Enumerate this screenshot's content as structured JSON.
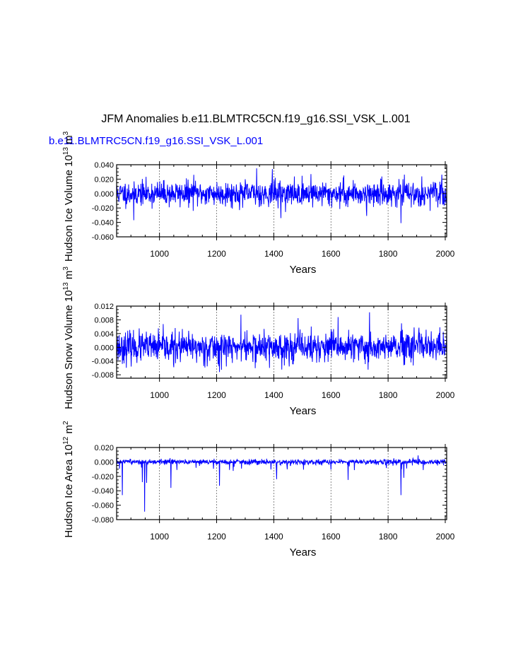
{
  "header": {
    "title": "JFM Anomalies b.e11.BLMTRC5CN.f19_g16.SSI_VSK_L.001",
    "subtitle": "b.e11.BLMTRC5CN.f19_g16.SSI_VSK_L.001",
    "subtitle_color": "#0000ff"
  },
  "line_color": "#0000ff",
  "chart_data": [
    {
      "type": "line",
      "xlabel": "Years",
      "ylabel_main": "Hudson Ice Volume 10",
      "ylabel_exp": "13",
      "ylabel_unit": " m",
      "ylabel_unit_exp": "3",
      "xlim": [
        850,
        2005
      ],
      "ylim": [
        -0.06,
        0.04
      ],
      "xticks": [
        1000,
        1200,
        1400,
        1600,
        1800,
        2000
      ],
      "xtick_labels": [
        "1000",
        "1200",
        "1400",
        "1600",
        "1800",
        "2000"
      ],
      "yticks": [
        -0.06,
        -0.04,
        -0.02,
        0.0,
        0.02,
        0.04
      ],
      "ytick_labels": [
        "-0.060",
        "-0.040",
        "-0.020",
        "0.000",
        "0.020",
        "0.040"
      ],
      "x_gridlines": [
        1000,
        1200,
        1400,
        1600,
        1800
      ],
      "series": [
        {
          "x_start": 850,
          "x_end": 2005,
          "noise_std": 0.0085,
          "seed": 11,
          "spikes": [
            [
              1340,
              0.035
            ],
            [
              1395,
              0.034
            ],
            [
              1425,
              -0.034
            ],
            [
              1530,
              0.027
            ],
            [
              1725,
              -0.031
            ],
            [
              1845,
              -0.041
            ],
            [
              910,
              -0.037
            ],
            [
              1120,
              0.026
            ],
            [
              1645,
              0.025
            ]
          ]
        }
      ]
    },
    {
      "type": "line",
      "xlabel": "Years",
      "ylabel_main": "Hudson Snow Volume 10",
      "ylabel_exp": "13",
      "ylabel_unit": " m",
      "ylabel_unit_exp": "3",
      "xlim": [
        850,
        2005
      ],
      "ylim": [
        -0.009,
        0.012
      ],
      "xticks": [
        1000,
        1200,
        1400,
        1600,
        1800,
        2000
      ],
      "xtick_labels": [
        "1000",
        "1200",
        "1400",
        "1600",
        "1800",
        "2000"
      ],
      "yticks": [
        -0.008,
        -0.004,
        0.0,
        0.004,
        0.008,
        0.012
      ],
      "ytick_labels": [
        "-0.008",
        "-0.004",
        "0.000",
        "0.004",
        "0.008",
        "0.012"
      ],
      "x_gridlines": [
        1000,
        1200,
        1400,
        1600,
        1800
      ],
      "series": [
        {
          "x_start": 850,
          "x_end": 2005,
          "noise_std": 0.0022,
          "seed": 23,
          "spikes": [
            [
              1735,
              0.0102
            ],
            [
              1285,
              0.0095
            ],
            [
              1485,
              0.0085
            ],
            [
              1625,
              0.0088
            ],
            [
              1210,
              -0.0072
            ],
            [
              1730,
              -0.0065
            ],
            [
              1050,
              -0.0058
            ],
            [
              1385,
              -0.006
            ]
          ]
        }
      ]
    },
    {
      "type": "line",
      "xlabel": "Years",
      "ylabel_main": "Hudson Ice Area 10",
      "ylabel_exp": "12",
      "ylabel_unit": " m",
      "ylabel_unit_exp": "2",
      "xlim": [
        850,
        2005
      ],
      "ylim": [
        -0.08,
        0.02
      ],
      "xticks": [
        1000,
        1200,
        1400,
        1600,
        1800,
        2000
      ],
      "xtick_labels": [
        "1000",
        "1200",
        "1400",
        "1600",
        "1800",
        "2000"
      ],
      "yticks": [
        -0.08,
        -0.06,
        -0.04,
        -0.02,
        0.0,
        0.02
      ],
      "ytick_labels": [
        "-0.080",
        "-0.060",
        "-0.040",
        "-0.020",
        "0.000",
        "0.020"
      ],
      "x_gridlines": [
        1000,
        1200,
        1400,
        1600,
        1800
      ],
      "series": [
        {
          "x_start": 850,
          "x_end": 2005,
          "noise_std": 0.0022,
          "seed": 37,
          "neg_skew": true,
          "spikes": [
            [
              948,
              -0.069
            ],
            [
              870,
              -0.046
            ],
            [
              940,
              -0.028
            ],
            [
              955,
              -0.029
            ],
            [
              1040,
              -0.036
            ],
            [
              1210,
              -0.033
            ],
            [
              1845,
              -0.046
            ],
            [
              1855,
              -0.022
            ],
            [
              1660,
              -0.025
            ],
            [
              1410,
              -0.024
            ],
            [
              1905,
              0.009
            ]
          ]
        }
      ]
    }
  ]
}
